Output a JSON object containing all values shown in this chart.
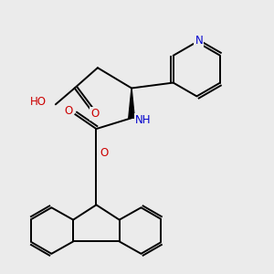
{
  "bg_color": "#ebebeb",
  "atom_colors": {
    "O": "#cc0000",
    "N": "#0000cc",
    "H_gray": "#808080"
  },
  "lw": 1.4,
  "fontsize": 8.5
}
